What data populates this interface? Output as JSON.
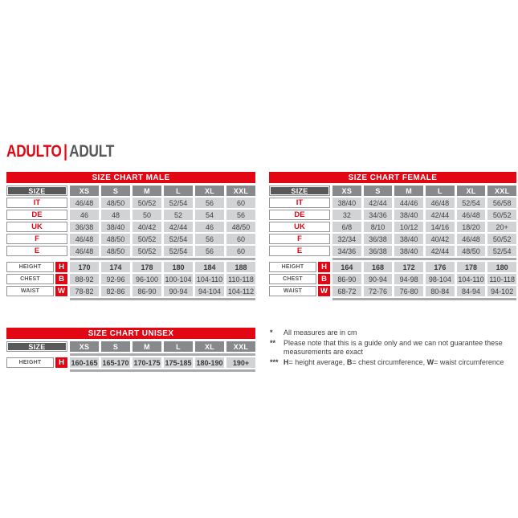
{
  "page_title": {
    "primary": "ADULTO",
    "separator": "|",
    "secondary": "ADULT"
  },
  "colors": {
    "accent_red": "#e30613",
    "header_dark_gray": "#59595b",
    "column_header_gray": "#88898c",
    "value_cell_gray": "#d2d3d5",
    "separator_band_gray": "#a9abae",
    "value_text": "#414042",
    "title_secondary_gray": "#58585b"
  },
  "tables": {
    "male": {
      "title": "SIZE CHART MALE",
      "size_label": "SIZE",
      "columns": [
        "XS",
        "S",
        "M",
        "L",
        "XL",
        "XXL"
      ],
      "country_rows": [
        {
          "label": "IT",
          "values": [
            "46/48",
            "48/50",
            "50/52",
            "52/54",
            "56",
            "60"
          ]
        },
        {
          "label": "DE",
          "values": [
            "46",
            "48",
            "50",
            "52",
            "54",
            "56"
          ]
        },
        {
          "label": "UK",
          "values": [
            "36/38",
            "38/40",
            "40/42",
            "42/44",
            "46",
            "48/50"
          ]
        },
        {
          "label": "F",
          "values": [
            "46/48",
            "48/50",
            "50/52",
            "52/54",
            "56",
            "60"
          ]
        },
        {
          "label": "E",
          "values": [
            "46/48",
            "48/50",
            "50/52",
            "52/54",
            "56",
            "60"
          ]
        }
      ],
      "measure_rows": [
        {
          "label": "HEIGHT",
          "code": "H",
          "bold": true,
          "values": [
            "170",
            "174",
            "178",
            "180",
            "184",
            "188"
          ]
        },
        {
          "label": "CHEST",
          "code": "B",
          "bold": false,
          "values": [
            "88-92",
            "92-96",
            "96-100",
            "100-104",
            "104-110",
            "110-118"
          ]
        },
        {
          "label": "WAIST",
          "code": "W",
          "bold": false,
          "values": [
            "78-82",
            "82-86",
            "86-90",
            "90-94",
            "94-104",
            "104-112"
          ]
        }
      ]
    },
    "female": {
      "title": "SIZE CHART FEMALE",
      "size_label": "SIZE",
      "columns": [
        "XS",
        "S",
        "M",
        "L",
        "XL",
        "XXL"
      ],
      "country_rows": [
        {
          "label": "IT",
          "values": [
            "38/40",
            "42/44",
            "44/46",
            "46/48",
            "52/54",
            "56/58"
          ]
        },
        {
          "label": "DE",
          "values": [
            "32",
            "34/36",
            "38/40",
            "42/44",
            "46/48",
            "50/52"
          ]
        },
        {
          "label": "UK",
          "values": [
            "6/8",
            "8/10",
            "10/12",
            "14/16",
            "18/20",
            "20+"
          ]
        },
        {
          "label": "F",
          "values": [
            "32/34",
            "36/38",
            "38/40",
            "40/42",
            "46/48",
            "50/52"
          ]
        },
        {
          "label": "E",
          "values": [
            "34/36",
            "36/38",
            "38/40",
            "42/44",
            "48/50",
            "52/54"
          ]
        }
      ],
      "measure_rows": [
        {
          "label": "HEIGHT",
          "code": "H",
          "bold": true,
          "values": [
            "164",
            "168",
            "172",
            "176",
            "178",
            "180"
          ]
        },
        {
          "label": "CHEST",
          "code": "B",
          "bold": false,
          "values": [
            "86-90",
            "90-94",
            "94-98",
            "98-104",
            "104-110",
            "110-118"
          ]
        },
        {
          "label": "WAIST",
          "code": "W",
          "bold": false,
          "values": [
            "68-72",
            "72-76",
            "76-80",
            "80-84",
            "84-94",
            "94-102"
          ]
        }
      ]
    },
    "unisex": {
      "title": "SIZE CHART UNISEX",
      "size_label": "SIZE",
      "columns": [
        "XS",
        "S",
        "M",
        "L",
        "XL",
        "XXL"
      ],
      "country_rows": [],
      "measure_rows": [
        {
          "label": "HEIGHT",
          "code": "H",
          "bold": true,
          "values": [
            "160-165",
            "165-170",
            "170-175",
            "175-185",
            "180-190",
            "190+"
          ]
        }
      ]
    }
  },
  "footnotes": [
    {
      "marker": "*",
      "segments": [
        {
          "text": "All measures are in cm",
          "bold": false
        }
      ]
    },
    {
      "marker": "**",
      "segments": [
        {
          "text": "Please note that this is a guide only and we can not guarantee these measurements are exact",
          "bold": false
        }
      ]
    },
    {
      "marker": "***",
      "segments": [
        {
          "text": "H",
          "bold": true
        },
        {
          "text": "= height average, ",
          "bold": false
        },
        {
          "text": "B",
          "bold": true
        },
        {
          "text": "= chest circumference, ",
          "bold": false
        },
        {
          "text": "W",
          "bold": true
        },
        {
          "text": "= waist circumference",
          "bold": false
        }
      ]
    }
  ]
}
